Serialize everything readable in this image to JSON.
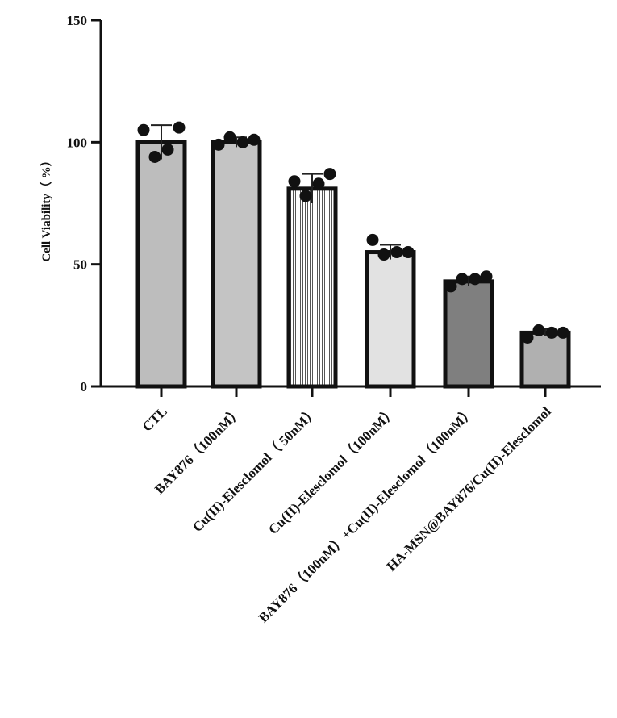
{
  "chart_data": {
    "type": "bar",
    "ylabel": "Cell Viability（ %）",
    "ylim": [
      0,
      150
    ],
    "yticks": [
      0,
      50,
      100,
      150
    ],
    "categories": [
      "CTL",
      "BAY876（100nM）",
      "Cu(II)-Elesclomol（ 50nM）",
      "Cu(II)-Elesclomol（100nM）",
      "BAY876（100nM）+Cu(II)-Elesclomol（100nM）",
      "HA-MSN@BAY876/Cu(II)-Elesclomol"
    ],
    "values": [
      100,
      100,
      81,
      55,
      43,
      22
    ],
    "errors": [
      7,
      2,
      6,
      3,
      2,
      1.5
    ],
    "points": [
      [
        105,
        94,
        97,
        106
      ],
      [
        99,
        102,
        100,
        101
      ],
      [
        84,
        78,
        83,
        87
      ],
      [
        60,
        54,
        55,
        55
      ],
      [
        41,
        44,
        44,
        45
      ],
      [
        20,
        23,
        22,
        22
      ]
    ],
    "bar_colors": [
      "#bdbdbd",
      "#c4c4c4",
      "#cfcfcf",
      "#e2e2e2",
      "#7f7f7f",
      "#b0b0b0"
    ],
    "grid": false
  }
}
